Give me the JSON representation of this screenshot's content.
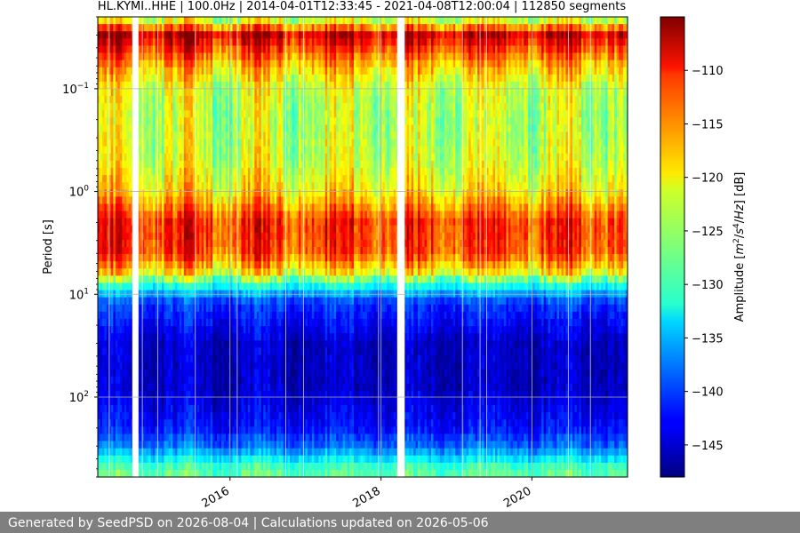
{
  "chart_data": {
    "type": "heatmap",
    "title": "HL.KYMI..HHE | 100.0Hz | 2014-04-01T12:33:45 - 2021-04-08T12:00:04 | 112850 segments",
    "xlabel": "",
    "ylabel": "Period [s]",
    "y_scale": "log",
    "y_inverted": true,
    "x_range": [
      "2014-04-01",
      "2021-04-08"
    ],
    "y_range": [
      0.02,
      600
    ],
    "x_ticks": [
      {
        "date": "2016-01-01",
        "label": "2016"
      },
      {
        "date": "2018-01-01",
        "label": "2018"
      },
      {
        "date": "2020-01-01",
        "label": "2020"
      }
    ],
    "y_ticks": [
      {
        "value": 0.1,
        "base": "10",
        "exp": "−1"
      },
      {
        "value": 1,
        "base": "10",
        "exp": "0"
      },
      {
        "value": 10,
        "base": "10",
        "exp": "1"
      },
      {
        "value": 100,
        "base": "10",
        "exp": "2"
      }
    ],
    "colorbar": {
      "label": "Amplitude [m²/s⁴/Hz] [dB]",
      "label_parts": [
        "Amplitude [",
        "m",
        "2",
        "/",
        "s",
        "4",
        "/",
        "Hz",
        "] [dB]"
      ],
      "colormap": "jet",
      "range": [
        -148,
        -105
      ],
      "ticks": [
        -110,
        -115,
        -120,
        -125,
        -130,
        -135,
        -140,
        -145
      ],
      "tick_labels": [
        "−110",
        "−115",
        "−120",
        "−125",
        "−130",
        "−135",
        "−140",
        "−145"
      ]
    },
    "grid": true,
    "data_gaps": [
      [
        "2014-09-15",
        "2014-10-15"
      ],
      [
        "2018-03-20",
        "2018-04-25"
      ]
    ],
    "period_profile": [
      {
        "period": 0.02,
        "level_db": -126
      },
      {
        "period": 0.03,
        "level_db": -108
      },
      {
        "period": 0.06,
        "level_db": -118
      },
      {
        "period": 0.1,
        "level_db": -123
      },
      {
        "period": 0.2,
        "level_db": -124
      },
      {
        "period": 0.5,
        "level_db": -123
      },
      {
        "period": 1.0,
        "level_db": -120
      },
      {
        "period": 2.0,
        "level_db": -112
      },
      {
        "period": 4.0,
        "level_db": -113
      },
      {
        "period": 6.0,
        "level_db": -120
      },
      {
        "period": 8.0,
        "level_db": -130
      },
      {
        "period": 12,
        "level_db": -140
      },
      {
        "period": 30,
        "level_db": -145
      },
      {
        "period": 80,
        "level_db": -145
      },
      {
        "period": 200,
        "level_db": -142
      },
      {
        "period": 300,
        "level_db": -138
      },
      {
        "period": 500,
        "level_db": -128
      }
    ]
  },
  "footer": {
    "text": "Generated by SeedPSD on 2026-08-04 | Calculations updated on 2026-05-06"
  }
}
